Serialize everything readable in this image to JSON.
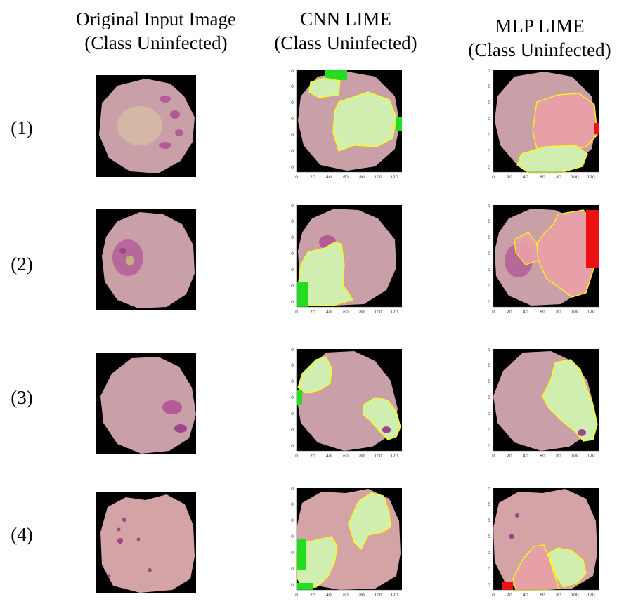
{
  "headers": {
    "original": [
      "Original Input Image",
      "(Class Uninfected)"
    ],
    "cnn": [
      "CNN LIME",
      "(Class Uninfected)"
    ],
    "mlp": [
      "MLP LIME",
      "(Class Uninfected)"
    ]
  },
  "rows": [
    {
      "label": "(1)"
    },
    {
      "label": "(2)"
    },
    {
      "label": "(3)"
    },
    {
      "label": "(4)"
    }
  ],
  "axis_ticks": [
    "0",
    "20",
    "40",
    "60",
    "80",
    "100",
    "120"
  ],
  "colors": {
    "cell": "#c9a0a8",
    "cell_row4": "#d4a3a6",
    "stain": "#b35a97",
    "background": "#000000",
    "positive_overlay": "#cfeeb0",
    "negative_overlay": "#e8a0a8",
    "boundary": "#ffff00",
    "pure_green": "#22dd22",
    "pure_red": "#ee1111"
  }
}
